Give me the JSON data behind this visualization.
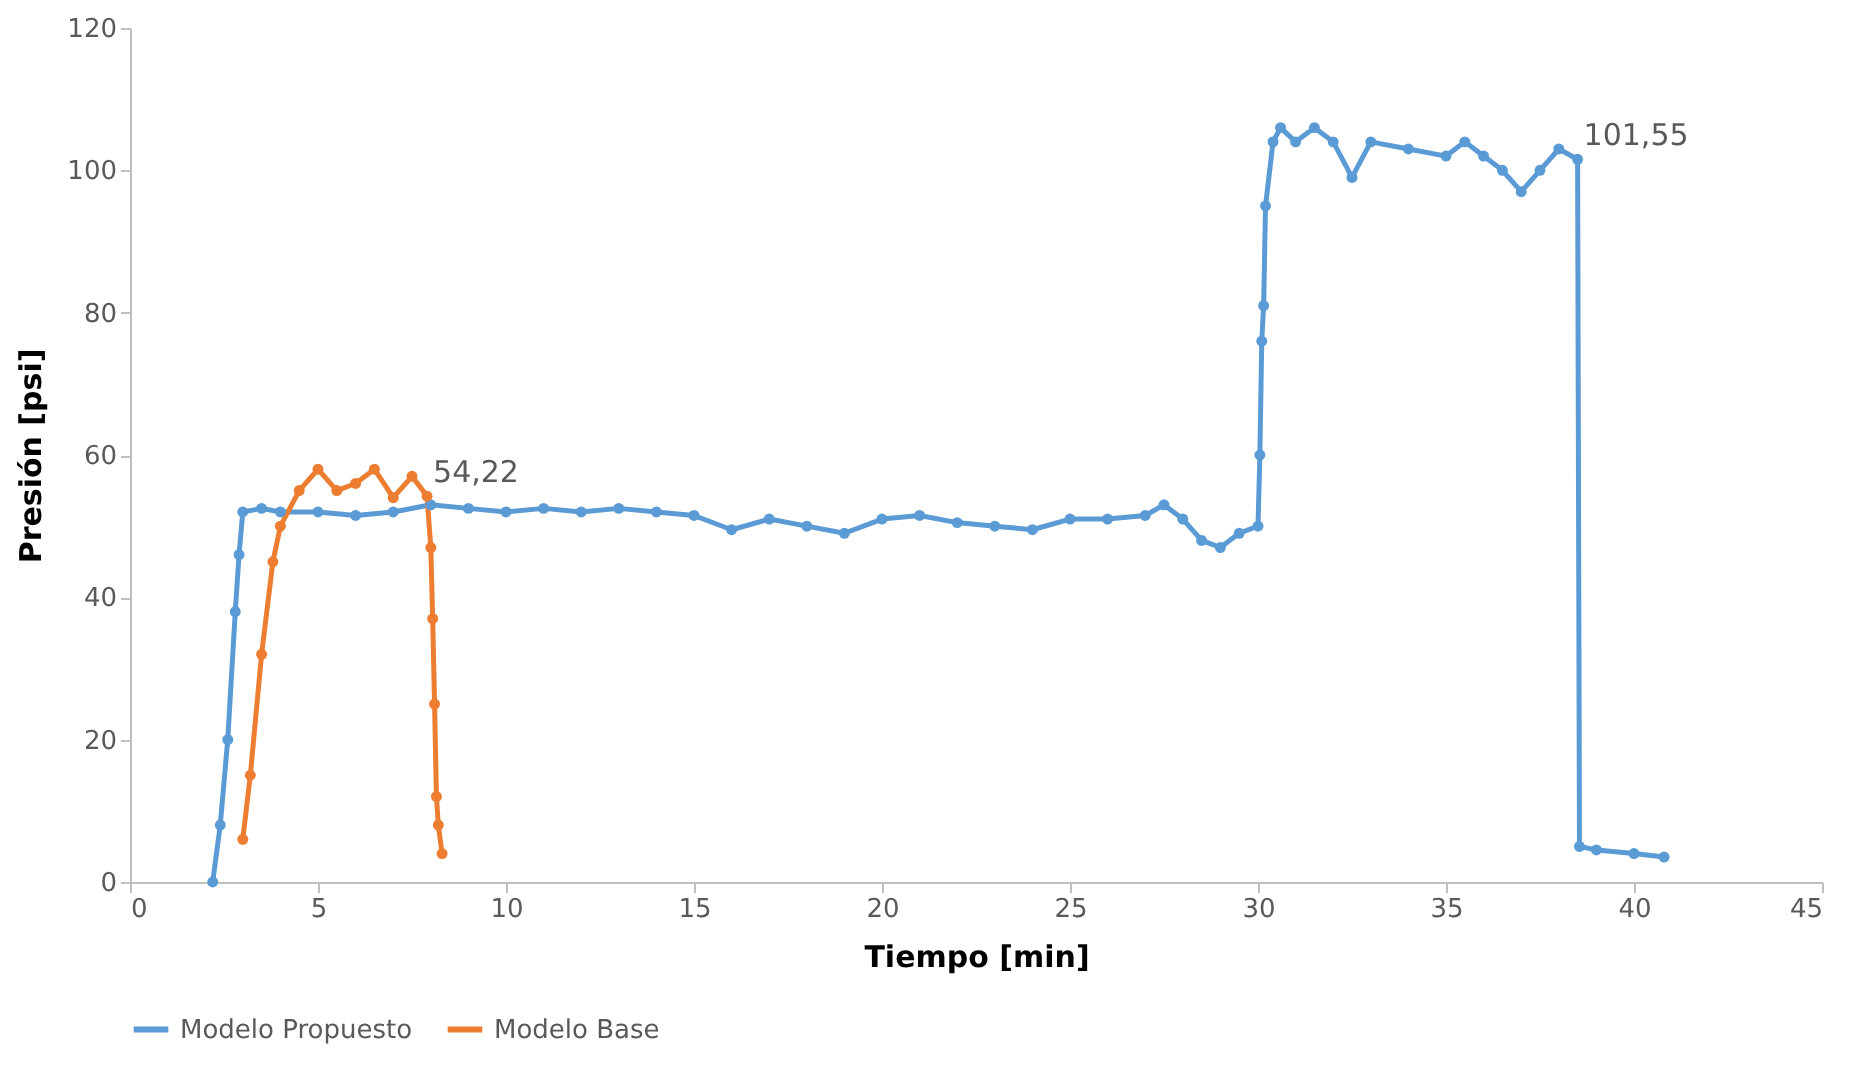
{
  "chart_data": {
    "type": "line",
    "xlabel": "Tiempo [min]",
    "ylabel": "Presión [psi]",
    "xlim": [
      0,
      45
    ],
    "xticks": [
      0,
      5,
      10,
      15,
      20,
      25,
      30,
      35,
      40,
      45
    ],
    "ylim": [
      0,
      120
    ],
    "yticks": [
      0,
      20,
      40,
      60,
      80,
      100,
      120
    ],
    "grid": false,
    "legend": "bottom",
    "marker": "circle",
    "line_style": "solid",
    "series": [
      {
        "name": "Modelo Propuesto",
        "color": "#5b9bd5",
        "x": [
          2.2,
          2.4,
          2.6,
          2.8,
          2.9,
          3.0,
          3.5,
          4,
          5,
          6,
          7,
          8,
          9,
          10,
          11,
          12,
          13,
          14,
          15,
          16,
          17,
          18,
          19,
          20,
          21,
          22,
          23,
          24,
          25,
          26,
          27,
          27.5,
          28,
          28.5,
          29,
          29.5,
          30,
          30.05,
          30.1,
          30.15,
          30.2,
          30.4,
          30.6,
          31,
          31.5,
          32,
          32.5,
          33,
          34,
          35,
          35.5,
          36,
          36.5,
          37,
          37.5,
          38,
          38.5,
          38.55,
          39,
          40,
          40.8
        ],
        "values": [
          0,
          8,
          20,
          38,
          46,
          52,
          52.5,
          52,
          52,
          51.5,
          52,
          53,
          52.5,
          52,
          52.5,
          52,
          52.5,
          52,
          51.5,
          49.5,
          51,
          50,
          49,
          51,
          51.5,
          50.5,
          50,
          49.5,
          51,
          51,
          51.5,
          53,
          51,
          48,
          47,
          49,
          50,
          60,
          76,
          81,
          95,
          104,
          106,
          104,
          106,
          104,
          99,
          104,
          103,
          102,
          104,
          102,
          100,
          97,
          100,
          103,
          101.55,
          5,
          4.5,
          4,
          3.5
        ]
      },
      {
        "name": "Modelo Base",
        "color": "#ed7d31",
        "x": [
          3.0,
          3.2,
          3.5,
          3.8,
          4,
          4.5,
          5,
          5.5,
          6,
          6.5,
          7,
          7.5,
          7.9,
          8.0,
          8.05,
          8.1,
          8.15,
          8.2,
          8.3
        ],
        "values": [
          6,
          15,
          32,
          45,
          50,
          55,
          58,
          55,
          56,
          58,
          54,
          57,
          54.22,
          47,
          37,
          25,
          12,
          8,
          4
        ]
      }
    ],
    "annotations": [
      {
        "text": "54,22",
        "x": 7.9,
        "y": 54.22
      },
      {
        "text": "101,55",
        "x": 38.5,
        "y": 101.55
      }
    ]
  }
}
